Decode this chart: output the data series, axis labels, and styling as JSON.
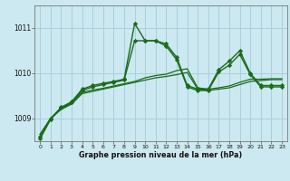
{
  "title": "Graphe pression niveau de la mer (hPa)",
  "background_color": "#cce8f0",
  "grid_color": "#a8d0dc",
  "line_color": "#1a6b1a",
  "line_color_dark": "#145014",
  "xlim": [
    -0.5,
    23.5
  ],
  "ylim": [
    1008.5,
    1011.5
  ],
  "yticks": [
    1009,
    1010,
    1011
  ],
  "xticks": [
    0,
    1,
    2,
    3,
    4,
    5,
    6,
    7,
    8,
    9,
    10,
    11,
    12,
    13,
    14,
    15,
    16,
    17,
    18,
    19,
    20,
    21,
    22,
    23
  ],
  "smooth_line1": [
    1008.65,
    1009.0,
    1009.2,
    1009.32,
    1009.55,
    1009.6,
    1009.65,
    1009.7,
    1009.75,
    1009.8,
    1009.85,
    1009.9,
    1009.93,
    1009.97,
    1010.02,
    1009.65,
    1009.62,
    1009.65,
    1009.68,
    1009.75,
    1009.82,
    1009.84,
    1009.86,
    1009.86
  ],
  "smooth_line2": [
    1008.65,
    1009.0,
    1009.22,
    1009.34,
    1009.58,
    1009.63,
    1009.67,
    1009.72,
    1009.77,
    1009.82,
    1009.9,
    1009.95,
    1009.98,
    1010.06,
    1010.1,
    1009.68,
    1009.65,
    1009.68,
    1009.72,
    1009.8,
    1009.87,
    1009.87,
    1009.88,
    1009.88
  ],
  "marker_line1": [
    1008.6,
    1009.0,
    1009.25,
    1009.37,
    1009.65,
    1009.73,
    1009.78,
    1009.82,
    1009.87,
    1011.1,
    1010.72,
    1010.72,
    1010.65,
    1010.35,
    1009.73,
    1009.65,
    1009.65,
    1010.08,
    1010.27,
    1010.5,
    1010.0,
    1009.73,
    1009.73,
    1009.73
  ],
  "marker_line2": [
    1008.55,
    1008.98,
    1009.23,
    1009.35,
    1009.62,
    1009.7,
    1009.75,
    1009.8,
    1009.85,
    1010.72,
    1010.72,
    1010.72,
    1010.6,
    1010.3,
    1009.7,
    1009.62,
    1009.62,
    1010.03,
    1010.18,
    1010.42,
    1009.97,
    1009.7,
    1009.7,
    1009.7
  ]
}
